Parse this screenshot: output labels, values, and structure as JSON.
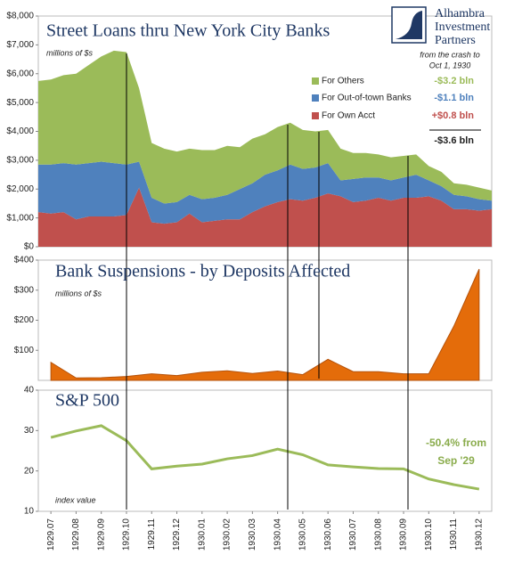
{
  "logo": [
    "Alhambra",
    "Investment",
    "Partners"
  ],
  "chart_data": [
    {
      "type": "area",
      "stacked": true,
      "title": "Street Loans thru New York City Banks",
      "subtitle": "millions of $s",
      "note": [
        "from the crash to",
        "Oct 1, 1930"
      ],
      "total_change_label": "-$3.6 bln",
      "categories": [
        null,
        null,
        null,
        null,
        null,
        null,
        null,
        null,
        null,
        null,
        null,
        null,
        null,
        null,
        null,
        null,
        null,
        null,
        null,
        null,
        null,
        null,
        null,
        null,
        null,
        null,
        null,
        null,
        null,
        null,
        null,
        null,
        null,
        null,
        null,
        null,
        null
      ],
      "series": [
        {
          "name": "For Own Acct",
          "color": "#c0504d",
          "change_label": "+$0.8 bln",
          "values": [
            1200,
            1150,
            1200,
            950,
            1050,
            1050,
            1050,
            1100,
            2050,
            850,
            800,
            850,
            1150,
            850,
            900,
            950,
            950,
            1200,
            1400,
            1550,
            1650,
            1600,
            1700,
            1850,
            1750,
            1550,
            1600,
            1700,
            1600,
            1700,
            1700,
            1750,
            1600,
            1300,
            1300,
            1250,
            1300
          ]
        },
        {
          "name": "For Out-of-town Banks",
          "color": "#4f81bd",
          "change_label": "-$1.1 bln",
          "values": [
            1650,
            1700,
            1700,
            1900,
            1850,
            1900,
            1850,
            1750,
            900,
            850,
            700,
            700,
            650,
            800,
            800,
            850,
            1050,
            1000,
            1100,
            1100,
            1200,
            1100,
            1050,
            1050,
            550,
            800,
            800,
            700,
            700,
            700,
            800,
            550,
            500,
            500,
            450,
            400,
            300
          ]
        },
        {
          "name": "For Others",
          "color": "#9bbb59",
          "change_label": "-$3.2 bln",
          "values": [
            2900,
            2950,
            3050,
            3150,
            3400,
            3650,
            3900,
            3900,
            2550,
            1900,
            1900,
            1750,
            1600,
            1700,
            1650,
            1700,
            1450,
            1550,
            1400,
            1500,
            1450,
            1350,
            1250,
            1150,
            1100,
            900,
            850,
            800,
            800,
            750,
            700,
            500,
            500,
            400,
            400,
            400,
            350
          ]
        }
      ],
      "ylim": [
        0,
        8000
      ],
      "yticks": [
        {
          "value": 0,
          "label": "$0"
        },
        {
          "value": 1000,
          "label": "$1,000"
        },
        {
          "value": 2000,
          "label": "$2,000"
        },
        {
          "value": 3000,
          "label": "$3,000"
        },
        {
          "value": 4000,
          "label": "$4,000"
        },
        {
          "value": 5000,
          "label": "$5,000"
        },
        {
          "value": 6000,
          "label": "$6,000"
        },
        {
          "value": 7000,
          "label": "$7,000"
        },
        {
          "value": 8000,
          "label": "$8,000"
        }
      ]
    },
    {
      "type": "area",
      "title": "Bank Suspensions - by Deposits Affected",
      "subtitle": "millions of $s",
      "color": "#e46c0a",
      "categories": [
        null,
        null,
        null,
        null,
        null,
        null,
        null,
        null,
        null,
        null,
        null,
        null,
        null,
        null,
        null,
        null,
        null,
        null
      ],
      "values": [
        60,
        8,
        9,
        13,
        22,
        16,
        27,
        32,
        23,
        31,
        19,
        70,
        29,
        29,
        22,
        22,
        181,
        370
      ],
      "ylim": [
        0,
        400
      ],
      "yticks": [
        {
          "value": 100,
          "label": "$100"
        },
        {
          "value": 200,
          "label": "$200"
        },
        {
          "value": 300,
          "label": "$300"
        },
        {
          "value": 400,
          "label": "$400"
        }
      ]
    },
    {
      "type": "line",
      "title": "S&P 500",
      "subtitle": "index value",
      "note": [
        "-50.4% from",
        "Sep '29"
      ],
      "color": "#9bbb59",
      "categories": [
        "1929.07",
        "1929.08",
        "1929.09",
        "1929.10",
        "1929.11",
        "1929.12",
        "1930.01",
        "1930.02",
        "1930.03",
        "1930.04",
        "1930.05",
        "1930.06",
        "1930.07",
        "1930.08",
        "1930.09",
        "1930.10",
        "1930.11",
        "1930.12"
      ],
      "values": [
        28.3,
        29.9,
        31.2,
        27.5,
        20.5,
        21.2,
        21.7,
        23,
        23.8,
        25.4,
        24,
        21.5,
        21,
        20.6,
        20.5,
        18,
        16.6,
        15.5
      ],
      "ylim": [
        10,
        40
      ],
      "yticks": [
        10,
        20,
        30,
        40
      ]
    }
  ]
}
